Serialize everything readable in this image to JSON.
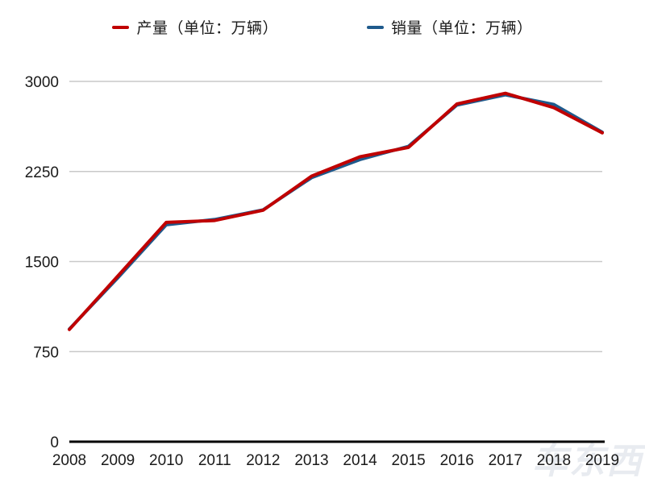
{
  "watermark": "车东西",
  "chart_data": {
    "type": "line",
    "title": "",
    "xlabel": "",
    "ylabel": "",
    "categories": [
      "2008",
      "2009",
      "2010",
      "2011",
      "2012",
      "2013",
      "2014",
      "2015",
      "2016",
      "2017",
      "2018",
      "2019"
    ],
    "series": [
      {
        "name": "产量",
        "legend_label": "产量（单位：万辆）",
        "color": "#c00000",
        "values": [
          934.5,
          1379.1,
          1826.5,
          1841.9,
          1927.2,
          2211.7,
          2372.3,
          2450.3,
          2811.9,
          2901.5,
          2780.9,
          2572.1
        ]
      },
      {
        "name": "销量",
        "legend_label": "销量（单位：万辆）",
        "color": "#1f5a8c",
        "values": [
          938.1,
          1364.5,
          1806.2,
          1850.5,
          1930.6,
          2198.4,
          2349.2,
          2459.8,
          2802.8,
          2887.9,
          2808.1,
          2576.9
        ]
      }
    ],
    "ylim": [
      0,
      3000
    ],
    "yticks": [
      0,
      750,
      1500,
      2250,
      3000
    ],
    "grid": true,
    "legend_position": "top",
    "colors": {
      "grid": "#c9c9c9",
      "axis": "#000000",
      "text": "#1a1a1a"
    }
  }
}
